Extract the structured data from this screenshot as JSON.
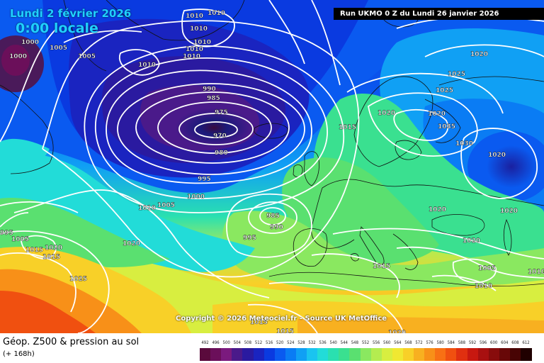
{
  "header": {
    "date": "Lundi 2 février 2026",
    "time": "0:00 locale",
    "run": "Run UKMO 0 Z du Lundi 26 janvier 2026"
  },
  "copyright": "Copyright © 2026 Meteociel.fr - Source UK MetOffice",
  "footer": {
    "title": "Géop. Z500 & pression au sol",
    "subtitle": "(+ 168h)"
  },
  "isobar_labels": [
    {
      "id": "l1",
      "text": "1010"
    },
    {
      "id": "l2",
      "text": "1010"
    },
    {
      "id": "l3",
      "text": "1000"
    },
    {
      "id": "l4",
      "text": "1005"
    },
    {
      "id": "l5",
      "text": "1005"
    },
    {
      "id": "l6",
      "text": "1000"
    },
    {
      "id": "l7",
      "text": "1010"
    },
    {
      "id": "l8",
      "text": "1010"
    },
    {
      "id": "l9",
      "text": "1010"
    },
    {
      "id": "l10",
      "text": "1010"
    },
    {
      "id": "l11",
      "text": "1010"
    },
    {
      "id": "l12",
      "text": "990"
    },
    {
      "id": "l13",
      "text": "985"
    },
    {
      "id": "l14",
      "text": "975"
    },
    {
      "id": "l15",
      "text": "970"
    },
    {
      "id": "l16",
      "text": "980"
    },
    {
      "id": "l17",
      "text": "995"
    },
    {
      "id": "l18",
      "text": "1000"
    },
    {
      "id": "l19",
      "text": "1005"
    },
    {
      "id": "l20",
      "text": "1010"
    },
    {
      "id": "l21",
      "text": "1020"
    },
    {
      "id": "l22",
      "text": "985"
    },
    {
      "id": "l23",
      "text": "990"
    },
    {
      "id": "l24",
      "text": "995"
    },
    {
      "id": "l25",
      "text": "1015"
    },
    {
      "id": "l26",
      "text": "1015"
    },
    {
      "id": "l27",
      "text": "1020"
    },
    {
      "id": "l28",
      "text": "1025"
    },
    {
      "id": "l29",
      "text": "1020"
    },
    {
      "id": "l30",
      "text": "1025"
    },
    {
      "id": "l31",
      "text": "1020"
    },
    {
      "id": "l32",
      "text": "1035"
    },
    {
      "id": "l33",
      "text": "1030"
    },
    {
      "id": "l34",
      "text": "1020"
    },
    {
      "id": "l35",
      "text": "1020"
    },
    {
      "id": "l36",
      "text": "1020"
    },
    {
      "id": "l37",
      "text": "1020"
    },
    {
      "id": "l38",
      "text": "1010"
    },
    {
      "id": "l39",
      "text": "1005"
    },
    {
      "id": "l40",
      "text": "1010"
    },
    {
      "id": "l41",
      "text": "1015"
    },
    {
      "id": "l42",
      "text": "1015"
    },
    {
      "id": "l43",
      "text": "1020"
    },
    {
      "id": "l44",
      "text": "995"
    },
    {
      "id": "l45",
      "text": "1005"
    },
    {
      "id": "l46",
      "text": "1020"
    },
    {
      "id": "l47",
      "text": "1015"
    },
    {
      "id": "l48",
      "text": "1015"
    },
    {
      "id": "l49",
      "text": "1025"
    }
  ],
  "color_scale": {
    "labels": [
      "492",
      "496",
      "500",
      "504",
      "508",
      "512",
      "516",
      "520",
      "524",
      "528",
      "532",
      "536",
      "540",
      "544",
      "548",
      "552",
      "556",
      "560",
      "564",
      "568",
      "572",
      "576",
      "580",
      "584",
      "588",
      "592",
      "596",
      "600",
      "604",
      "608",
      "612"
    ],
    "colors": [
      "#5a0a3c",
      "#6b0f5a",
      "#7b1a7e",
      "#4a1a8a",
      "#2a1aa0",
      "#1a24c0",
      "#0a3ae0",
      "#0a5af0",
      "#0a7cf4",
      "#10a0f4",
      "#1ac4f0",
      "#22dcd8",
      "#2ae0b0",
      "#3ae090",
      "#5ae070",
      "#8ae860",
      "#b4ec50",
      "#d8ee40",
      "#f0e832",
      "#f8d028",
      "#f8b020",
      "#f89018",
      "#f87014",
      "#f05010",
      "#e03010",
      "#c81810",
      "#a81010",
      "#880c0c",
      "#680808",
      "#480404",
      "#200000"
    ]
  }
}
